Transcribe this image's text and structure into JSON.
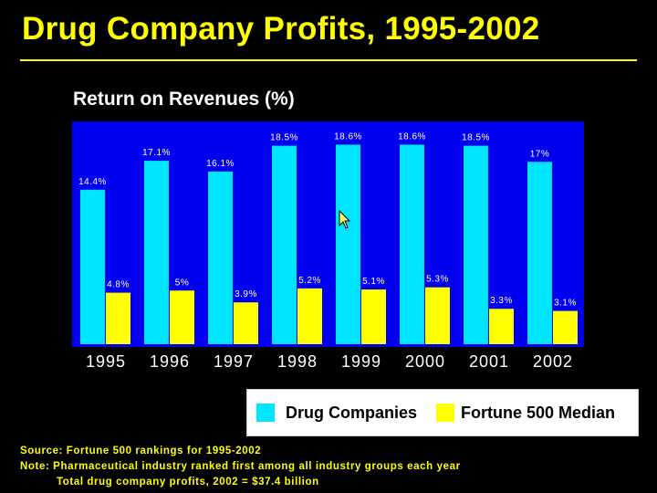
{
  "title": "Drug Company Profits, 1995-2002",
  "colors": {
    "background": "#000000",
    "title": "#ffff00",
    "plot_background": "#0000ee",
    "drug": "#00e5ff",
    "fortune": "#ffff00"
  },
  "chart_data": {
    "type": "bar",
    "title": "Return on Revenues (%)",
    "categories": [
      "1995",
      "1996",
      "1997",
      "1998",
      "1999",
      "2000",
      "2001",
      "2002"
    ],
    "series": [
      {
        "name": "Drug Companies",
        "values": [
          14.4,
          17.1,
          16.1,
          18.5,
          18.6,
          18.6,
          18.5,
          17
        ],
        "labels": [
          "14.4%",
          "17.1%",
          "16.1%",
          "18.5%",
          "18.6%",
          "18.6%",
          "18.5%",
          "17%"
        ]
      },
      {
        "name": "Fortune 500 Median",
        "values": [
          4.8,
          5,
          3.9,
          5.2,
          5.1,
          5.3,
          3.3,
          3.1
        ],
        "labels": [
          "4.8%",
          "5%",
          "3.9%",
          "5.2%",
          "5.1%",
          "5.3%",
          "3.3%",
          "3.1%"
        ]
      }
    ],
    "ylim": [
      0,
      20
    ],
    "grid": false,
    "legend": "bottom-right"
  },
  "footnotes": {
    "source": "Source: Fortune 500 rankings for 1995-2002",
    "note": "Note: Pharmaceutical industry ranked first among all industry groups each year",
    "note2": "Total drug company profits, 2002 = $37.4 billion"
  }
}
